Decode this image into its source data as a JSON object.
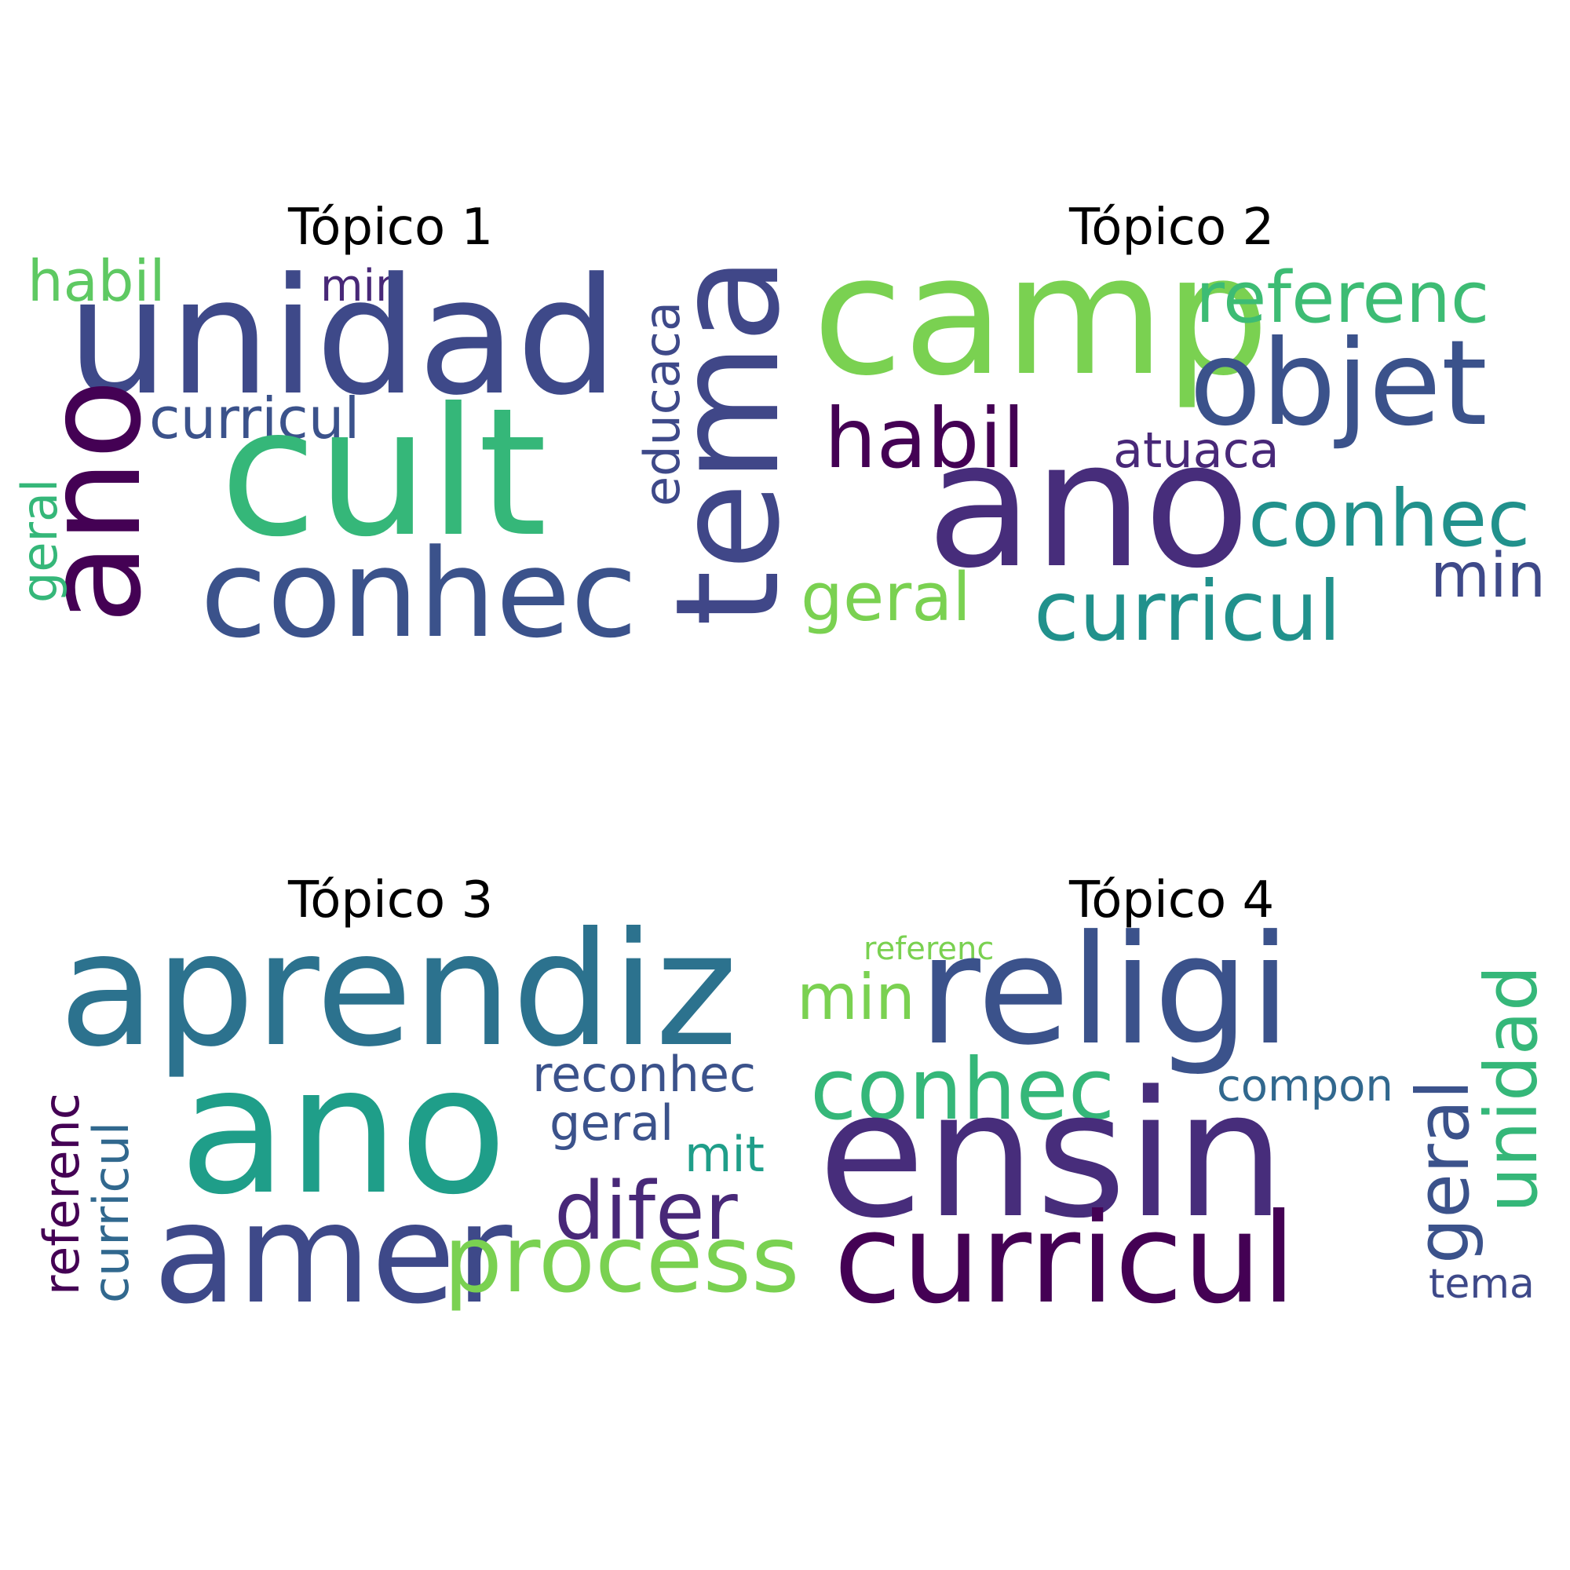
{
  "topics": [
    {
      "title": "Tópico 1",
      "words": [
        {
          "text": "habil",
          "color": "#5ec962"
        },
        {
          "text": "min",
          "color": "#482878"
        },
        {
          "text": "unidad",
          "color": "#3e4989"
        },
        {
          "text": "curricul",
          "color": "#3b528b"
        },
        {
          "text": "cult",
          "color": "#35b779"
        },
        {
          "text": "ano",
          "color": "#440154"
        },
        {
          "text": "geral",
          "color": "#35b779"
        },
        {
          "text": "conhec",
          "color": "#3b528b"
        },
        {
          "text": "educaca",
          "color": "#3e4989"
        },
        {
          "text": "tema",
          "color": "#404788"
        }
      ]
    },
    {
      "title": "Tópico 2",
      "words": [
        {
          "text": "camp",
          "color": "#7ad151"
        },
        {
          "text": "referenc",
          "color": "#3dbc74"
        },
        {
          "text": "objet",
          "color": "#3b528b"
        },
        {
          "text": "habil",
          "color": "#440154"
        },
        {
          "text": "atuaca",
          "color": "#482878"
        },
        {
          "text": "ano",
          "color": "#472d7b"
        },
        {
          "text": "conhec",
          "color": "#21918c"
        },
        {
          "text": "min",
          "color": "#3e4989"
        },
        {
          "text": "geral",
          "color": "#7ad151"
        },
        {
          "text": "curricul",
          "color": "#21918c"
        }
      ]
    },
    {
      "title": "Tópico 3",
      "words": [
        {
          "text": "aprendiz",
          "color": "#2c728e"
        },
        {
          "text": "ano",
          "color": "#1f9e89"
        },
        {
          "text": "reconhec",
          "color": "#3b528b"
        },
        {
          "text": "geral",
          "color": "#3b528b"
        },
        {
          "text": "mit",
          "color": "#1f9e89"
        },
        {
          "text": "difer",
          "color": "#482878"
        },
        {
          "text": "amer",
          "color": "#3e4989"
        },
        {
          "text": "process",
          "color": "#7ad151"
        },
        {
          "text": "referenc",
          "color": "#440154"
        },
        {
          "text": "curricul",
          "color": "#31688e"
        }
      ]
    },
    {
      "title": "Tópico 4",
      "words": [
        {
          "text": "referenc",
          "color": "#7ad151"
        },
        {
          "text": "religi",
          "color": "#3b528b"
        },
        {
          "text": "min",
          "color": "#7ad151"
        },
        {
          "text": "unidad",
          "color": "#35b779"
        },
        {
          "text": "conhec",
          "color": "#35b779"
        },
        {
          "text": "compon",
          "color": "#31688e"
        },
        {
          "text": "ensin",
          "color": "#472d7b"
        },
        {
          "text": "geral",
          "color": "#3b528b"
        },
        {
          "text": "curricul",
          "color": "#440154"
        },
        {
          "text": "tema",
          "color": "#3e4989"
        }
      ]
    }
  ]
}
